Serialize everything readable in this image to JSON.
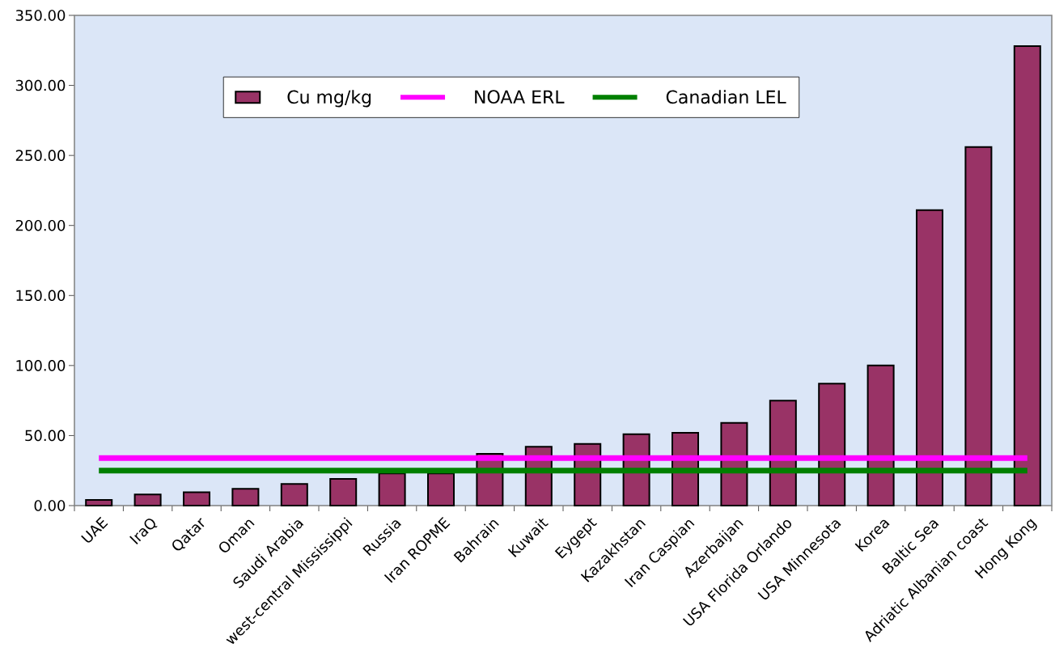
{
  "chart_data": {
    "type": "bar",
    "categories": [
      "UAE",
      "IraQ",
      "Qatar",
      "Oman",
      "Saudi Arabia",
      "west-central Mississippi",
      "Russia",
      "Iran ROPME",
      "Bahrain",
      "Kuwait",
      "Eygept",
      "Kazakhstan",
      "Iran Caspian",
      "Azerbaijan",
      "USA Florida Orlando",
      "USA Minnesota",
      "Korea",
      "Baltic Sea",
      "Adriatic Albanian coast",
      "Hong Kong"
    ],
    "series": [
      {
        "name": "Cu mg/kg",
        "color": "#993366",
        "values": [
          4,
          8,
          9.5,
          12,
          15.5,
          19,
          23,
          23,
          37,
          42,
          44,
          51,
          52,
          59,
          75,
          87,
          100,
          211,
          256,
          328
        ]
      },
      {
        "name": "NOAA ERL",
        "type": "line",
        "color": "#ff00ff",
        "values": [
          34,
          34,
          34,
          34,
          34,
          34,
          34,
          34,
          34,
          34,
          34,
          34,
          34,
          34,
          34,
          34,
          34,
          34,
          34,
          34
        ]
      },
      {
        "name": "Canadian LEL",
        "type": "line",
        "color": "#008000",
        "values": [
          25,
          25,
          25,
          25,
          25,
          25,
          25,
          25,
          25,
          25,
          25,
          25,
          25,
          25,
          25,
          25,
          25,
          25,
          25,
          25
        ]
      }
    ],
    "ylim": [
      0,
      350
    ],
    "yticks": [
      {
        "value": 0,
        "label": "0.00"
      },
      {
        "value": 50,
        "label": "50.00"
      },
      {
        "value": 100,
        "label": "100.00"
      },
      {
        "value": 150,
        "label": "150.00"
      },
      {
        "value": 200,
        "label": "200.00"
      },
      {
        "value": 250,
        "label": "250.00"
      },
      {
        "value": 300,
        "label": "300.00"
      },
      {
        "value": 350,
        "label": "350.00"
      }
    ],
    "legend": "top"
  }
}
